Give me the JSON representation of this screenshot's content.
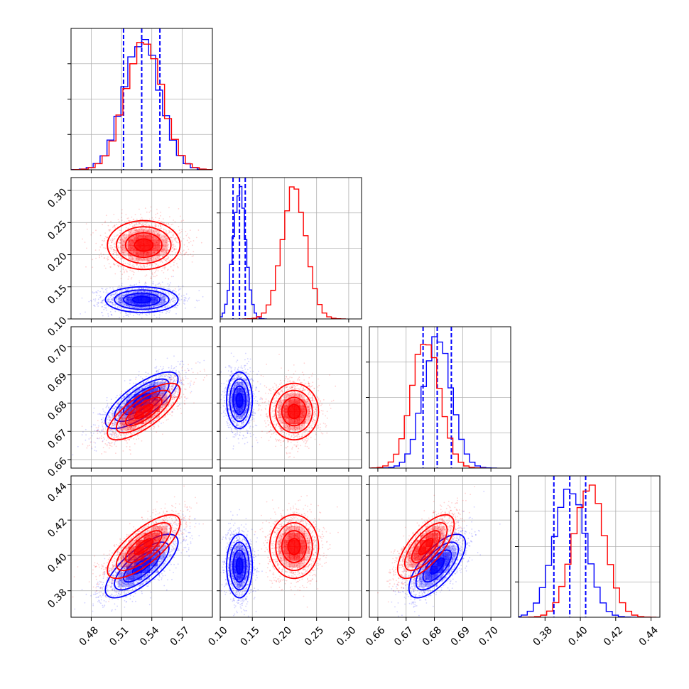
{
  "chart_data": {
    "type": "corner",
    "title": "",
    "parameters": [
      {
        "range": [
          0.46,
          0.6
        ],
        "ticks": [
          "0.48",
          "0.51",
          "0.54",
          "0.57"
        ],
        "tick_values": [
          0.48,
          0.51,
          0.54,
          0.57
        ]
      },
      {
        "range": [
          0.1,
          0.32
        ],
        "ticks": [
          "0.10",
          "0.15",
          "0.20",
          "0.25",
          "0.30"
        ],
        "tick_values": [
          0.1,
          0.15,
          0.2,
          0.25,
          0.3
        ]
      },
      {
        "range": [
          0.657,
          0.707
        ],
        "ticks": [
          "0.66",
          "0.67",
          "0.68",
          "0.69",
          "0.70"
        ],
        "tick_values": [
          0.66,
          0.67,
          0.68,
          0.69,
          0.7
        ]
      },
      {
        "range": [
          0.365,
          0.445
        ],
        "ticks": [
          "0.38",
          "0.40",
          "0.42",
          "0.44"
        ],
        "tick_values": [
          0.38,
          0.4,
          0.42,
          0.44
        ]
      }
    ],
    "series": [
      {
        "color": "#0000ff",
        "means": [
          0.53,
          0.13,
          0.681,
          0.394
        ],
        "sds": [
          0.018,
          0.01,
          0.005,
          0.009
        ],
        "quantile_lines": [
          [
            0.512,
            0.53,
            0.548
          ],
          [
            0.12,
            0.13,
            0.139
          ],
          [
            0.676,
            0.681,
            0.686
          ],
          [
            0.385,
            0.394,
            0.403
          ]
        ],
        "correlations": {
          "2-0": 0.75,
          "3-0": 0.75,
          "3-2": 0.7,
          "1-0": 0.0,
          "2-1": 0.0,
          "3-1": 0.0
        }
      },
      {
        "color": "#ff0000",
        "means": [
          0.532,
          0.215,
          0.677,
          0.405
        ],
        "sds": [
          0.018,
          0.019,
          0.005,
          0.009
        ],
        "quantile_lines": [],
        "correlations": {
          "2-0": 0.75,
          "3-0": 0.75,
          "3-2": 0.7,
          "1-0": 0.0,
          "2-1": 0.0,
          "3-1": 0.0
        }
      }
    ],
    "grid": true,
    "legend": "none"
  }
}
